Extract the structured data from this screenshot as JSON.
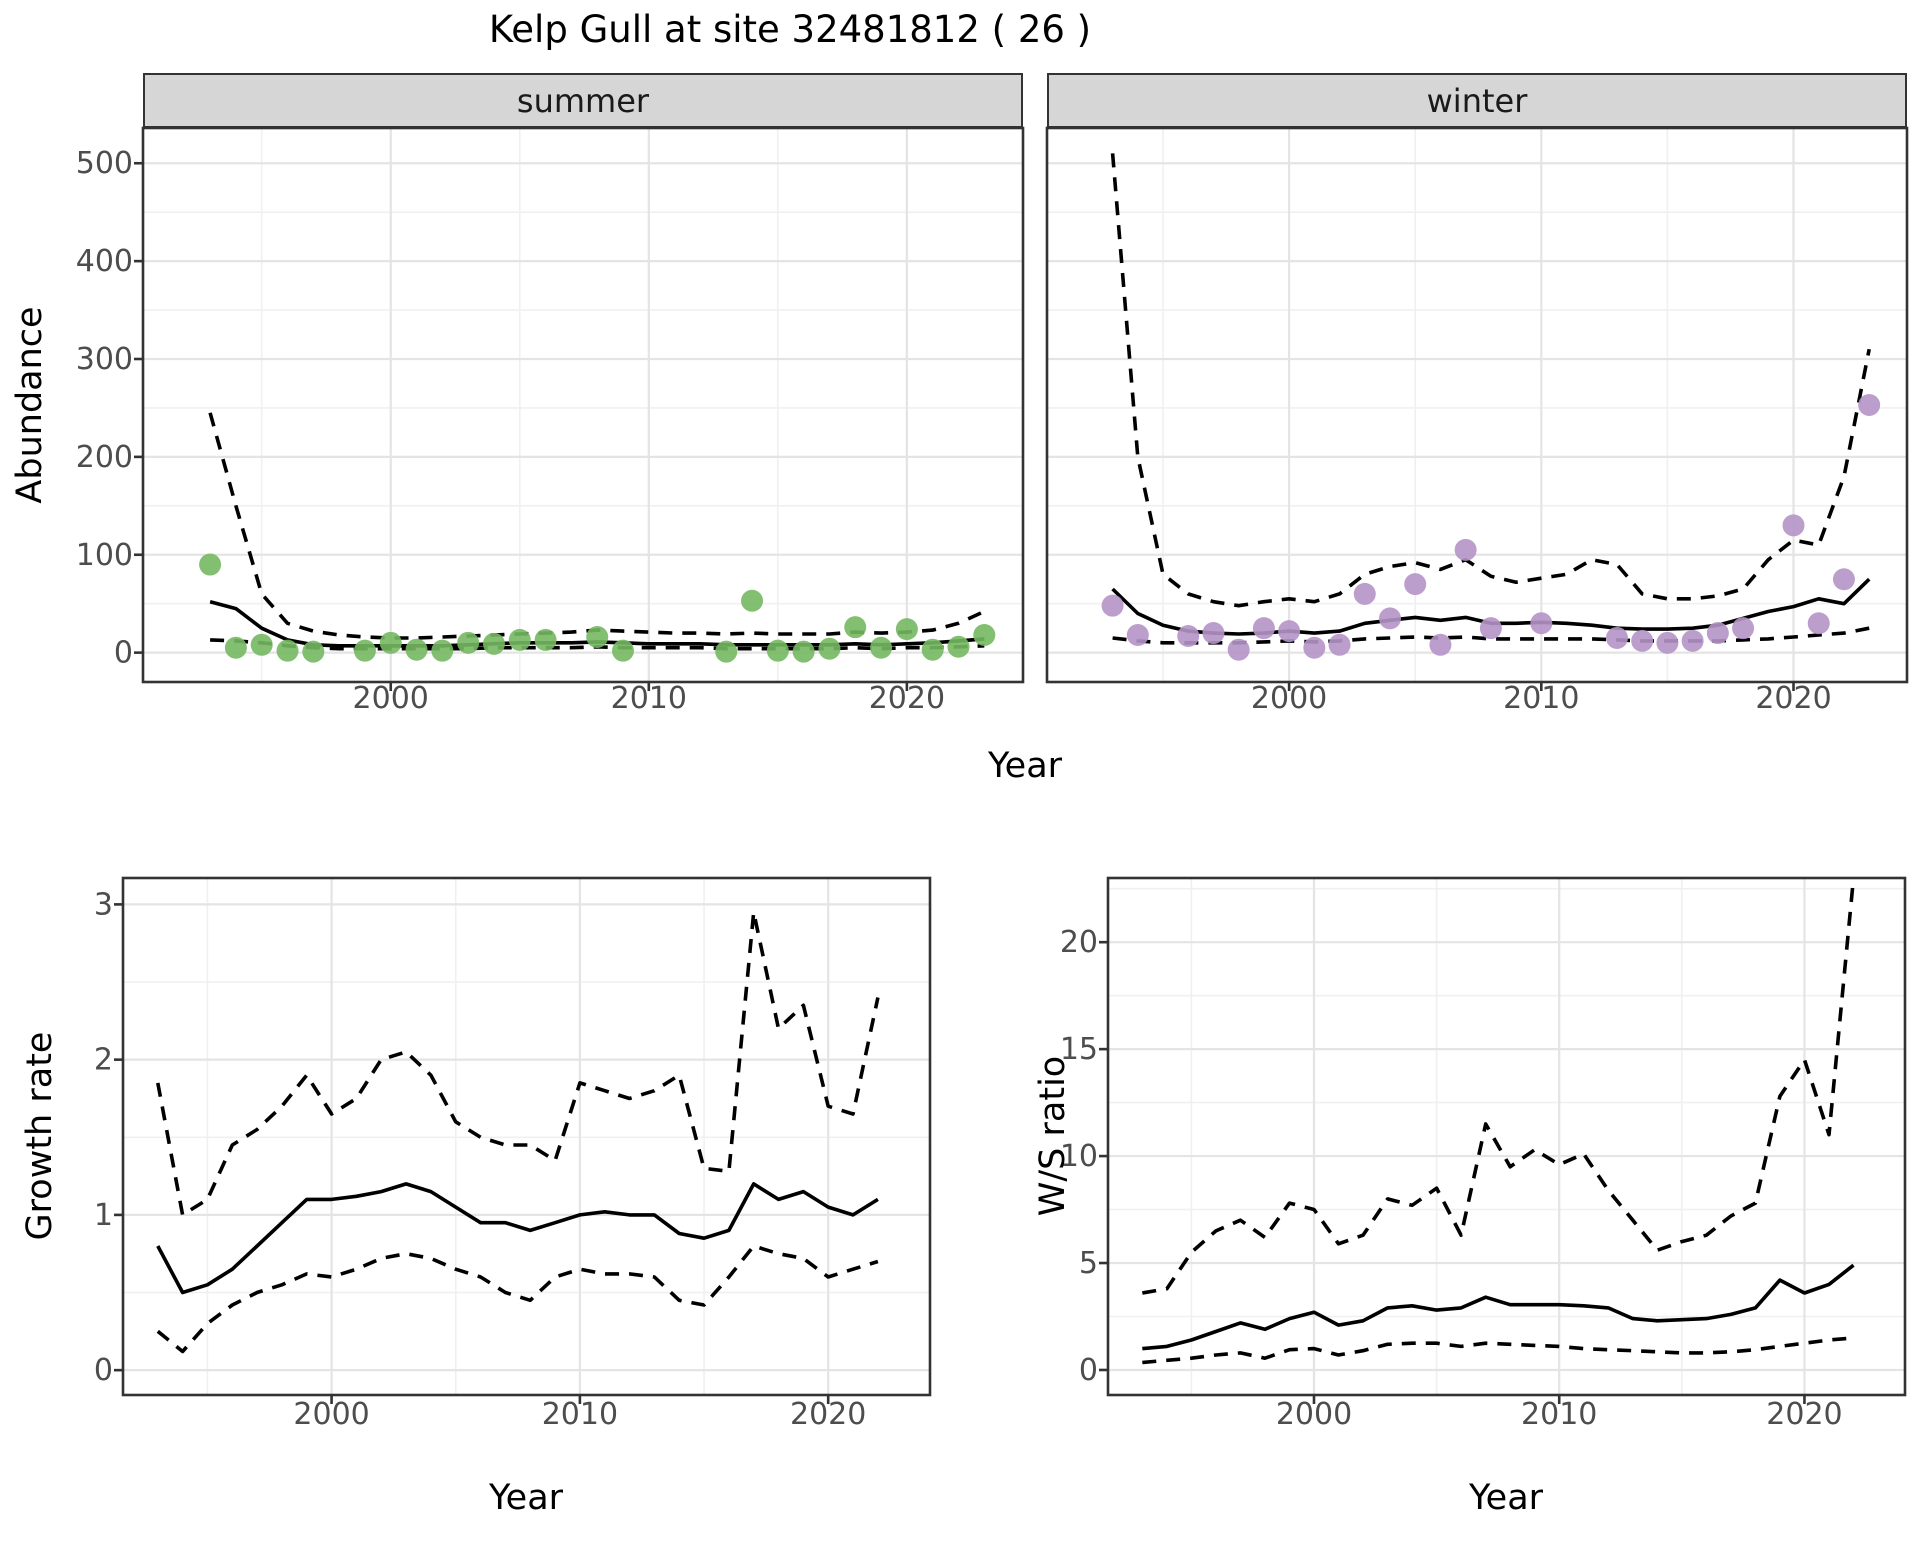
{
  "figure": {
    "title": "Kelp Gull at site 32481812 ( 26 )"
  },
  "colors": {
    "summer_point": "#74b861",
    "winter_point": "#b593c8",
    "line": "#000000",
    "grid_major": "#e4e4e4",
    "grid_minor": "#f0f0f0",
    "panel_border": "#333333",
    "strip_bg": "#d6d6d6",
    "axis_text": "#4d4d4d",
    "title_text": "#000000"
  },
  "chart_data": [
    {
      "id": "abundance-summer",
      "type": "line+scatter",
      "facet_label": "summer",
      "xlabel": "Year",
      "ylabel": "Abundance",
      "xlim": [
        1990.4,
        2024.5
      ],
      "ylim": [
        -30,
        536
      ],
      "x_ticks": [
        2000,
        2010,
        2020
      ],
      "x_minor": [
        1995,
        2005,
        2015
      ],
      "y_ticks": [
        0,
        100,
        200,
        300,
        400,
        500
      ],
      "y_minor": [
        50,
        150,
        250,
        350,
        450
      ],
      "legend_position": "none",
      "grid": true,
      "point_color": "#74b861",
      "years": [
        1993,
        1994,
        1995,
        1996,
        1997,
        1998,
        1999,
        2000,
        2001,
        2002,
        2003,
        2004,
        2005,
        2006,
        2007,
        2008,
        2009,
        2010,
        2011,
        2012,
        2013,
        2014,
        2015,
        2016,
        2017,
        2018,
        2019,
        2020,
        2021,
        2022,
        2023
      ],
      "points": [
        [
          1993,
          90
        ],
        [
          1994,
          5
        ],
        [
          1995,
          8
        ],
        [
          1996,
          2
        ],
        [
          1997,
          1
        ],
        [
          1999,
          2
        ],
        [
          2000,
          10
        ],
        [
          2001,
          3
        ],
        [
          2002,
          2
        ],
        [
          2003,
          10
        ],
        [
          2004,
          9
        ],
        [
          2005,
          13
        ],
        [
          2006,
          13
        ],
        [
          2008,
          16
        ],
        [
          2009,
          2
        ],
        [
          2013,
          1
        ],
        [
          2014,
          53
        ],
        [
          2015,
          2
        ],
        [
          2016,
          1
        ],
        [
          2017,
          4
        ],
        [
          2018,
          26
        ],
        [
          2019,
          5
        ],
        [
          2020,
          24
        ],
        [
          2021,
          3
        ],
        [
          2022,
          6
        ],
        [
          2023,
          18
        ]
      ],
      "fit": [
        52,
        45,
        25,
        13,
        8,
        7,
        7,
        7,
        7,
        7,
        8,
        9,
        10,
        10,
        10,
        11,
        10,
        9,
        9,
        9,
        8,
        8,
        8,
        8,
        8,
        9,
        8,
        9,
        10,
        12,
        14
      ],
      "upper": [
        245,
        150,
        60,
        30,
        22,
        18,
        16,
        15,
        15,
        16,
        17,
        18,
        19,
        20,
        21,
        23,
        22,
        21,
        20,
        20,
        19,
        20,
        19,
        19,
        19,
        21,
        20,
        21,
        23,
        30,
        42
      ],
      "lower": [
        13,
        12,
        10,
        7,
        5,
        4,
        4,
        4,
        4,
        4,
        4,
        5,
        5,
        5,
        5,
        6,
        5,
        5,
        5,
        5,
        4,
        4,
        4,
        4,
        4,
        5,
        4,
        5,
        5,
        6,
        7
      ]
    },
    {
      "id": "abundance-winter",
      "type": "line+scatter",
      "facet_label": "winter",
      "xlabel": "Year",
      "ylabel": "Abundance",
      "xlim": [
        1990.4,
        2024.5
      ],
      "ylim": [
        -30,
        536
      ],
      "x_ticks": [
        2000,
        2010,
        2020
      ],
      "x_minor": [
        1995,
        2005,
        2015
      ],
      "y_ticks": [
        0,
        100,
        200,
        300,
        400,
        500
      ],
      "y_minor": [
        50,
        150,
        250,
        350,
        450
      ],
      "legend_position": "none",
      "grid": true,
      "point_color": "#b593c8",
      "years": [
        1993,
        1994,
        1995,
        1996,
        1997,
        1998,
        1999,
        2000,
        2001,
        2002,
        2003,
        2004,
        2005,
        2006,
        2007,
        2008,
        2009,
        2010,
        2011,
        2012,
        2013,
        2014,
        2015,
        2016,
        2017,
        2018,
        2019,
        2020,
        2021,
        2022,
        2023
      ],
      "points": [
        [
          1993,
          48
        ],
        [
          1994,
          18
        ],
        [
          1996,
          17
        ],
        [
          1997,
          20
        ],
        [
          1998,
          3
        ],
        [
          1999,
          25
        ],
        [
          2000,
          22
        ],
        [
          2001,
          5
        ],
        [
          2002,
          8
        ],
        [
          2003,
          60
        ],
        [
          2004,
          35
        ],
        [
          2005,
          70
        ],
        [
          2006,
          8
        ],
        [
          2007,
          105
        ],
        [
          2008,
          25
        ],
        [
          2010,
          30
        ],
        [
          2013,
          15
        ],
        [
          2014,
          12
        ],
        [
          2015,
          10
        ],
        [
          2016,
          12
        ],
        [
          2017,
          20
        ],
        [
          2018,
          25
        ],
        [
          2020,
          130
        ],
        [
          2021,
          30
        ],
        [
          2022,
          75
        ],
        [
          2023,
          253
        ]
      ],
      "fit": [
        65,
        40,
        28,
        22,
        20,
        19,
        20,
        22,
        20,
        22,
        30,
        33,
        36,
        33,
        36,
        30,
        30,
        31,
        30,
        28,
        25,
        24,
        24,
        25,
        28,
        35,
        42,
        47,
        55,
        50,
        75
      ],
      "upper": [
        510,
        200,
        80,
        60,
        52,
        48,
        52,
        55,
        52,
        60,
        80,
        88,
        92,
        85,
        95,
        78,
        72,
        76,
        80,
        95,
        90,
        60,
        55,
        55,
        58,
        65,
        95,
        115,
        110,
        180,
        310
      ],
      "lower": [
        15,
        12,
        10,
        10,
        10,
        10,
        11,
        12,
        11,
        12,
        14,
        15,
        16,
        15,
        16,
        14,
        14,
        14,
        14,
        14,
        13,
        12,
        12,
        12,
        12,
        13,
        14,
        16,
        18,
        20,
        25
      ]
    },
    {
      "id": "growth-rate",
      "type": "line",
      "facet_label": "",
      "xlabel": "Year",
      "ylabel": "Growth rate",
      "xlim": [
        1991.6,
        2024.1
      ],
      "ylim": [
        -0.16,
        3.17
      ],
      "x_ticks": [
        2000,
        2010,
        2020
      ],
      "x_minor": [
        1995,
        2005,
        2015
      ],
      "y_ticks": [
        0,
        1,
        2,
        3
      ],
      "y_minor": [
        0.5,
        1.5,
        2.5
      ],
      "legend_position": "none",
      "grid": true,
      "point_color": "#000000",
      "years": [
        1993,
        1994,
        1995,
        1996,
        1997,
        1998,
        1999,
        2000,
        2001,
        2002,
        2003,
        2004,
        2005,
        2006,
        2007,
        2008,
        2009,
        2010,
        2011,
        2012,
        2013,
        2014,
        2015,
        2016,
        2017,
        2018,
        2019,
        2020,
        2021,
        2022
      ],
      "points": [],
      "fit": [
        0.8,
        0.5,
        0.55,
        0.65,
        0.8,
        0.95,
        1.1,
        1.1,
        1.12,
        1.15,
        1.2,
        1.15,
        1.05,
        0.95,
        0.95,
        0.9,
        0.95,
        1.0,
        1.02,
        1.0,
        1.0,
        0.88,
        0.85,
        0.9,
        1.2,
        1.1,
        1.15,
        1.05,
        1.0,
        1.1
      ],
      "upper": [
        1.85,
        1.0,
        1.1,
        1.45,
        1.55,
        1.7,
        1.9,
        1.65,
        1.75,
        2.0,
        2.05,
        1.9,
        1.6,
        1.5,
        1.45,
        1.45,
        1.35,
        1.85,
        1.8,
        1.75,
        1.8,
        1.9,
        1.3,
        1.28,
        2.95,
        2.2,
        2.35,
        1.7,
        1.65,
        2.4
      ],
      "lower": [
        0.25,
        0.12,
        0.3,
        0.42,
        0.5,
        0.55,
        0.62,
        0.6,
        0.65,
        0.72,
        0.75,
        0.72,
        0.65,
        0.6,
        0.5,
        0.45,
        0.6,
        0.65,
        0.62,
        0.62,
        0.6,
        0.45,
        0.42,
        0.6,
        0.8,
        0.75,
        0.72,
        0.6,
        0.65,
        0.7
      ]
    },
    {
      "id": "ws-ratio",
      "type": "line",
      "facet_label": "",
      "xlabel": "Year",
      "ylabel": "W/S ratio",
      "xlim": [
        1991.6,
        2024.1
      ],
      "ylim": [
        -1.17,
        23.0
      ],
      "x_ticks": [
        2000,
        2010,
        2020
      ],
      "x_minor": [
        1995,
        2005,
        2015
      ],
      "y_ticks": [
        0,
        5,
        10,
        15,
        20
      ],
      "y_minor": [
        2.5,
        7.5,
        12.5,
        17.5,
        22.5
      ],
      "legend_position": "none",
      "grid": true,
      "point_color": "#000000",
      "years": [
        1993,
        1994,
        1995,
        1996,
        1997,
        1998,
        1999,
        2000,
        2001,
        2002,
        2003,
        2004,
        2005,
        2006,
        2007,
        2008,
        2009,
        2010,
        2011,
        2012,
        2013,
        2014,
        2015,
        2016,
        2017,
        2018,
        2019,
        2020,
        2021,
        2022
      ],
      "points": [],
      "fit": [
        1.0,
        1.1,
        1.4,
        1.8,
        2.2,
        1.9,
        2.4,
        2.7,
        2.1,
        2.3,
        2.9,
        3.0,
        2.8,
        2.9,
        3.4,
        3.05,
        3.05,
        3.05,
        3.0,
        2.9,
        2.4,
        2.3,
        2.35,
        2.4,
        2.6,
        2.9,
        4.2,
        3.6,
        4.0,
        4.9
      ],
      "upper": [
        3.6,
        3.8,
        5.5,
        6.5,
        7.0,
        6.2,
        7.8,
        7.5,
        5.9,
        6.3,
        8.0,
        7.7,
        8.5,
        6.3,
        11.5,
        9.5,
        10.3,
        9.6,
        10.1,
        8.4,
        7.0,
        5.6,
        6.0,
        6.3,
        7.2,
        7.8,
        12.8,
        14.5,
        11.0,
        23.0
      ],
      "lower": [
        0.35,
        0.45,
        0.55,
        0.7,
        0.8,
        0.55,
        0.95,
        1.0,
        0.7,
        0.9,
        1.2,
        1.25,
        1.25,
        1.1,
        1.25,
        1.2,
        1.15,
        1.1,
        1.0,
        0.95,
        0.9,
        0.85,
        0.8,
        0.8,
        0.85,
        0.95,
        1.1,
        1.25,
        1.4,
        1.5
      ]
    }
  ]
}
